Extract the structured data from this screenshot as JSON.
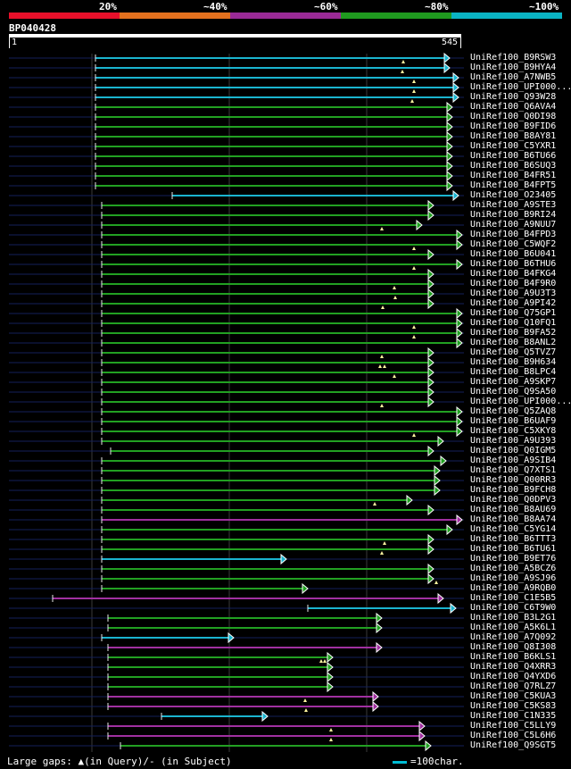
{
  "query": {
    "name": "BP040428",
    "start_label": "1",
    "end_label": "545",
    "length": 545
  },
  "scale": [
    {
      "label": "20%",
      "color": "#e8102a"
    },
    {
      "label": "~40%",
      "color": "#e4711e"
    },
    {
      "label": "~60%",
      "color": "#9a2a96"
    },
    {
      "label": "~80%",
      "color": "#1f9a1f"
    },
    {
      "label": "~100%",
      "color": "#0ab4c4"
    }
  ],
  "footer": {
    "gaps_text": "Large gaps: ▲(in Query)/- (in Subject)",
    "legend_text": "=100char."
  },
  "hits": [
    {
      "name": "UniRef100_B9RSW3",
      "color": "#1ab4cf",
      "start": 155,
      "end": 730,
      "marks": [
        655
      ]
    },
    {
      "name": "UniRef100_B9HYA4",
      "color": "#1ab4cf",
      "start": 155,
      "end": 730,
      "marks": [
        653
      ]
    },
    {
      "name": "UniRef100_A7NWB5",
      "color": "#1ab4cf",
      "start": 155,
      "end": 745,
      "marks": [
        672
      ]
    },
    {
      "name": "UniRef100_UPI000...",
      "color": "#1ab4cf",
      "start": 155,
      "end": 745,
      "marks": [
        673
      ]
    },
    {
      "name": "UniRef100_Q93W28",
      "color": "#1ab4cf",
      "start": 155,
      "end": 745,
      "marks": [
        670
      ]
    },
    {
      "name": "UniRef100_Q6AVA4",
      "color": "#22a022",
      "start": 155,
      "end": 735,
      "marks": []
    },
    {
      "name": "UniRef100_Q0DI98",
      "color": "#22a022",
      "start": 155,
      "end": 735,
      "marks": []
    },
    {
      "name": "UniRef100_B9FID6",
      "color": "#22a022",
      "start": 155,
      "end": 735,
      "marks": []
    },
    {
      "name": "UniRef100_B8AY81",
      "color": "#22a022",
      "start": 155,
      "end": 735,
      "marks": []
    },
    {
      "name": "UniRef100_C5YXR1",
      "color": "#22a022",
      "start": 155,
      "end": 735,
      "marks": []
    },
    {
      "name": "UniRef100_B6TU66",
      "color": "#22a022",
      "start": 155,
      "end": 735,
      "marks": []
    },
    {
      "name": "UniRef100_B6SUQ3",
      "color": "#22a022",
      "start": 155,
      "end": 735,
      "marks": []
    },
    {
      "name": "UniRef100_B4FR51",
      "color": "#22a022",
      "start": 155,
      "end": 735,
      "marks": []
    },
    {
      "name": "UniRef100_B4FPT5",
      "color": "#22a022",
      "start": 155,
      "end": 735,
      "marks": []
    },
    {
      "name": "UniRef100_O23405",
      "color": "#1ab4cf",
      "start": 280,
      "end": 745,
      "marks": []
    },
    {
      "name": "UniRef100_A9STE3",
      "color": "#22a022",
      "start": 165,
      "end": 705,
      "marks": []
    },
    {
      "name": "UniRef100_B9RI24",
      "color": "#22a022",
      "start": 165,
      "end": 705,
      "marks": []
    },
    {
      "name": "UniRef100_A9NUU7",
      "color": "#22a022",
      "start": 165,
      "end": 685,
      "marks": [
        620
      ]
    },
    {
      "name": "UniRef100_B4FPD3",
      "color": "#22a022",
      "start": 165,
      "end": 750,
      "marks": []
    },
    {
      "name": "UniRef100_C5WQF2",
      "color": "#22a022",
      "start": 165,
      "end": 750,
      "marks": [
        672
      ]
    },
    {
      "name": "UniRef100_B6U041",
      "color": "#22a022",
      "start": 165,
      "end": 705,
      "marks": []
    },
    {
      "name": "UniRef100_B6THU6",
      "color": "#22a022",
      "start": 165,
      "end": 750,
      "marks": [
        673
      ]
    },
    {
      "name": "UniRef100_B4FKG4",
      "color": "#22a022",
      "start": 165,
      "end": 705,
      "marks": []
    },
    {
      "name": "UniRef100_B4F9R0",
      "color": "#22a022",
      "start": 165,
      "end": 705,
      "marks": [
        640
      ]
    },
    {
      "name": "UniRef100_A9U3T3",
      "color": "#22a022",
      "start": 165,
      "end": 705,
      "marks": [
        642
      ]
    },
    {
      "name": "UniRef100_A9PI42",
      "color": "#22a022",
      "start": 165,
      "end": 705,
      "marks": [
        622
      ]
    },
    {
      "name": "UniRef100_Q75GP1",
      "color": "#22a022",
      "start": 165,
      "end": 750,
      "marks": []
    },
    {
      "name": "UniRef100_Q10FQ1",
      "color": "#22a022",
      "start": 165,
      "end": 750,
      "marks": [
        673
      ]
    },
    {
      "name": "UniRef100_B9FA52",
      "color": "#22a022",
      "start": 165,
      "end": 750,
      "marks": [
        672
      ]
    },
    {
      "name": "UniRef100_B8ANL2",
      "color": "#22a022",
      "start": 165,
      "end": 750,
      "marks": []
    },
    {
      "name": "UniRef100_Q5TVZ7",
      "color": "#22a022",
      "start": 165,
      "end": 705,
      "marks": [
        620
      ]
    },
    {
      "name": "UniRef100_B9H634",
      "color": "#22a022",
      "start": 165,
      "end": 705,
      "marks": [
        618,
        625
      ]
    },
    {
      "name": "UniRef100_B8LPC4",
      "color": "#22a022",
      "start": 165,
      "end": 705,
      "marks": [
        640
      ]
    },
    {
      "name": "UniRef100_A9SKP7",
      "color": "#22a022",
      "start": 165,
      "end": 705,
      "marks": []
    },
    {
      "name": "UniRef100_Q9SA50",
      "color": "#22a022",
      "start": 165,
      "end": 705,
      "marks": []
    },
    {
      "name": "UniRef100_UPI000...",
      "color": "#22a022",
      "start": 165,
      "end": 705,
      "marks": [
        620
      ]
    },
    {
      "name": "UniRef100_Q5ZAQ8",
      "color": "#22a022",
      "start": 165,
      "end": 750,
      "marks": []
    },
    {
      "name": "UniRef100_B6UAF9",
      "color": "#22a022",
      "start": 165,
      "end": 750,
      "marks": []
    },
    {
      "name": "UniRef100_C5XKY8",
      "color": "#22a022",
      "start": 165,
      "end": 750,
      "marks": [
        673
      ]
    },
    {
      "name": "UniRef100_A9U393",
      "color": "#22a022",
      "start": 165,
      "end": 720,
      "marks": []
    },
    {
      "name": "UniRef100_Q0IGM5",
      "color": "#22a022",
      "start": 180,
      "end": 705,
      "marks": []
    },
    {
      "name": "UniRef100_A9SIB4",
      "color": "#22a022",
      "start": 165,
      "end": 725,
      "marks": []
    },
    {
      "name": "UniRef100_Q7XTS1",
      "color": "#22a022",
      "start": 165,
      "end": 715,
      "marks": []
    },
    {
      "name": "UniRef100_Q00RR3",
      "color": "#22a022",
      "start": 165,
      "end": 715,
      "marks": []
    },
    {
      "name": "UniRef100_B9FCH8",
      "color": "#22a022",
      "start": 165,
      "end": 715,
      "marks": []
    },
    {
      "name": "UniRef100_Q0DPV3",
      "color": "#22a022",
      "start": 165,
      "end": 670,
      "marks": [
        608
      ]
    },
    {
      "name": "UniRef100_B8AU69",
      "color": "#22a022",
      "start": 165,
      "end": 705,
      "marks": []
    },
    {
      "name": "UniRef100_B8AA74",
      "color": "#a030a0",
      "start": 165,
      "end": 750,
      "marks": []
    },
    {
      "name": "UniRef100_C5YG14",
      "color": "#22a022",
      "start": 165,
      "end": 735,
      "marks": []
    },
    {
      "name": "UniRef100_B6TTT3",
      "color": "#22a022",
      "start": 165,
      "end": 705,
      "marks": [
        625
      ]
    },
    {
      "name": "UniRef100_B6TU61",
      "color": "#22a022",
      "start": 165,
      "end": 705,
      "marks": [
        620
      ]
    },
    {
      "name": "UniRef100_B9ET76",
      "color": "#1ab4cf",
      "start": 165,
      "end": 465,
      "marks": []
    },
    {
      "name": "UniRef100_A5BCZ6",
      "color": "#22a022",
      "start": 165,
      "end": 705,
      "marks": []
    },
    {
      "name": "UniRef100_A9SJ96",
      "color": "#22a022",
      "start": 165,
      "end": 705,
      "marks": [
        708
      ]
    },
    {
      "name": "UniRef100_A9RQB0",
      "color": "#22a022",
      "start": 165,
      "end": 500,
      "marks": []
    },
    {
      "name": "UniRef100_C1E5B5",
      "color": "#a030a0",
      "start": 85,
      "end": 720,
      "marks": []
    },
    {
      "name": "UniRef100_C6T9W0",
      "color": "#1ab4cf",
      "start": 500,
      "end": 740,
      "marks": []
    },
    {
      "name": "UniRef100_B3L2G1",
      "color": "#22a022",
      "start": 175,
      "end": 620,
      "marks": []
    },
    {
      "name": "UniRef100_A5K6L1",
      "color": "#22a022",
      "start": 175,
      "end": 620,
      "marks": []
    },
    {
      "name": "UniRef100_A7Q092",
      "color": "#1ab4cf",
      "start": 165,
      "end": 380,
      "marks": []
    },
    {
      "name": "UniRef100_Q8I308",
      "color": "#a030a0",
      "start": 175,
      "end": 620,
      "marks": []
    },
    {
      "name": "UniRef100_B6KLS1",
      "color": "#22a022",
      "start": 175,
      "end": 540,
      "marks": [
        522,
        527
      ]
    },
    {
      "name": "UniRef100_Q4XRR3",
      "color": "#22a022",
      "start": 175,
      "end": 540,
      "marks": []
    },
    {
      "name": "UniRef100_Q4YXD6",
      "color": "#22a022",
      "start": 175,
      "end": 540,
      "marks": []
    },
    {
      "name": "UniRef100_Q7RLZ7",
      "color": "#22a022",
      "start": 175,
      "end": 540,
      "marks": []
    },
    {
      "name": "UniRef100_C5KUA3",
      "color": "#a030a0",
      "start": 175,
      "end": 615,
      "marks": [
        495
      ]
    },
    {
      "name": "UniRef100_C5KS83",
      "color": "#a030a0",
      "start": 175,
      "end": 615,
      "marks": [
        497
      ]
    },
    {
      "name": "UniRef100_C1N335",
      "color": "#1ab4cf",
      "start": 262,
      "end": 435,
      "marks": []
    },
    {
      "name": "UniRef100_C5LLY9",
      "color": "#a030a0",
      "start": 175,
      "end": 690,
      "marks": [
        538
      ]
    },
    {
      "name": "UniRef100_C5L6H6",
      "color": "#a030a0",
      "start": 175,
      "end": 690,
      "marks": [
        538
      ]
    },
    {
      "name": "UniRef100_Q9SGT5",
      "color": "#22a022",
      "start": 195,
      "end": 700,
      "marks": []
    }
  ]
}
